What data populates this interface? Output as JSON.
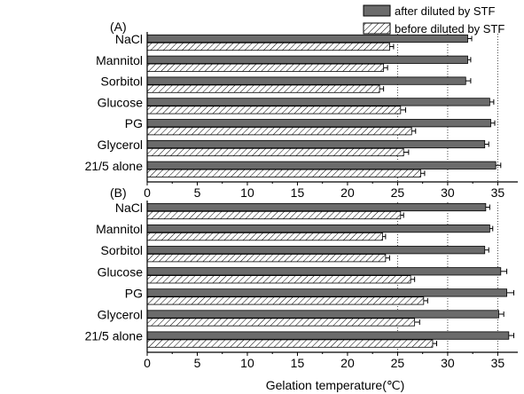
{
  "chart_data": {
    "type": "bar",
    "orientation": "horizontal",
    "xlabel": "Gelation temperature(℃)",
    "xlim": [
      0,
      37
    ],
    "xticks": [
      0,
      5,
      10,
      15,
      20,
      25,
      30,
      35
    ],
    "reference_lines": [
      25,
      30,
      35
    ],
    "categories": [
      "NaCl",
      "Mannitol",
      "Sorbitol",
      "Glucose",
      "PG",
      "Glycerol",
      "21/5 alone"
    ],
    "legend": {
      "position": "top-right",
      "entries": [
        "after diluted by STF",
        "before diluted by STF"
      ]
    },
    "colors": {
      "after": "#6b6b6b",
      "before_hatch": "#000000"
    },
    "panels": [
      {
        "label": "(A)",
        "series": [
          {
            "name": "after diluted by STF",
            "values": [
              32.0,
              32.0,
              31.8,
              34.2,
              34.3,
              33.7,
              34.8
            ],
            "errors": [
              0.4,
              0.3,
              0.5,
              0.4,
              0.4,
              0.4,
              0.5
            ]
          },
          {
            "name": "before diluted by STF",
            "values": [
              24.2,
              23.6,
              23.2,
              25.3,
              26.4,
              25.6,
              27.3
            ],
            "errors": [
              0.4,
              0.4,
              0.4,
              0.5,
              0.4,
              0.5,
              0.4
            ]
          }
        ]
      },
      {
        "label": "(B)",
        "series": [
          {
            "name": "after diluted by STF",
            "values": [
              33.8,
              34.2,
              33.7,
              35.3,
              35.9,
              35.1,
              36.1
            ],
            "errors": [
              0.4,
              0.3,
              0.4,
              0.6,
              0.7,
              0.5,
              0.5
            ]
          },
          {
            "name": "before diluted by STF",
            "values": [
              25.3,
              23.5,
              23.8,
              26.3,
              27.6,
              26.7,
              28.5
            ],
            "errors": [
              0.3,
              0.3,
              0.4,
              0.4,
              0.4,
              0.5,
              0.4
            ]
          }
        ]
      }
    ]
  }
}
